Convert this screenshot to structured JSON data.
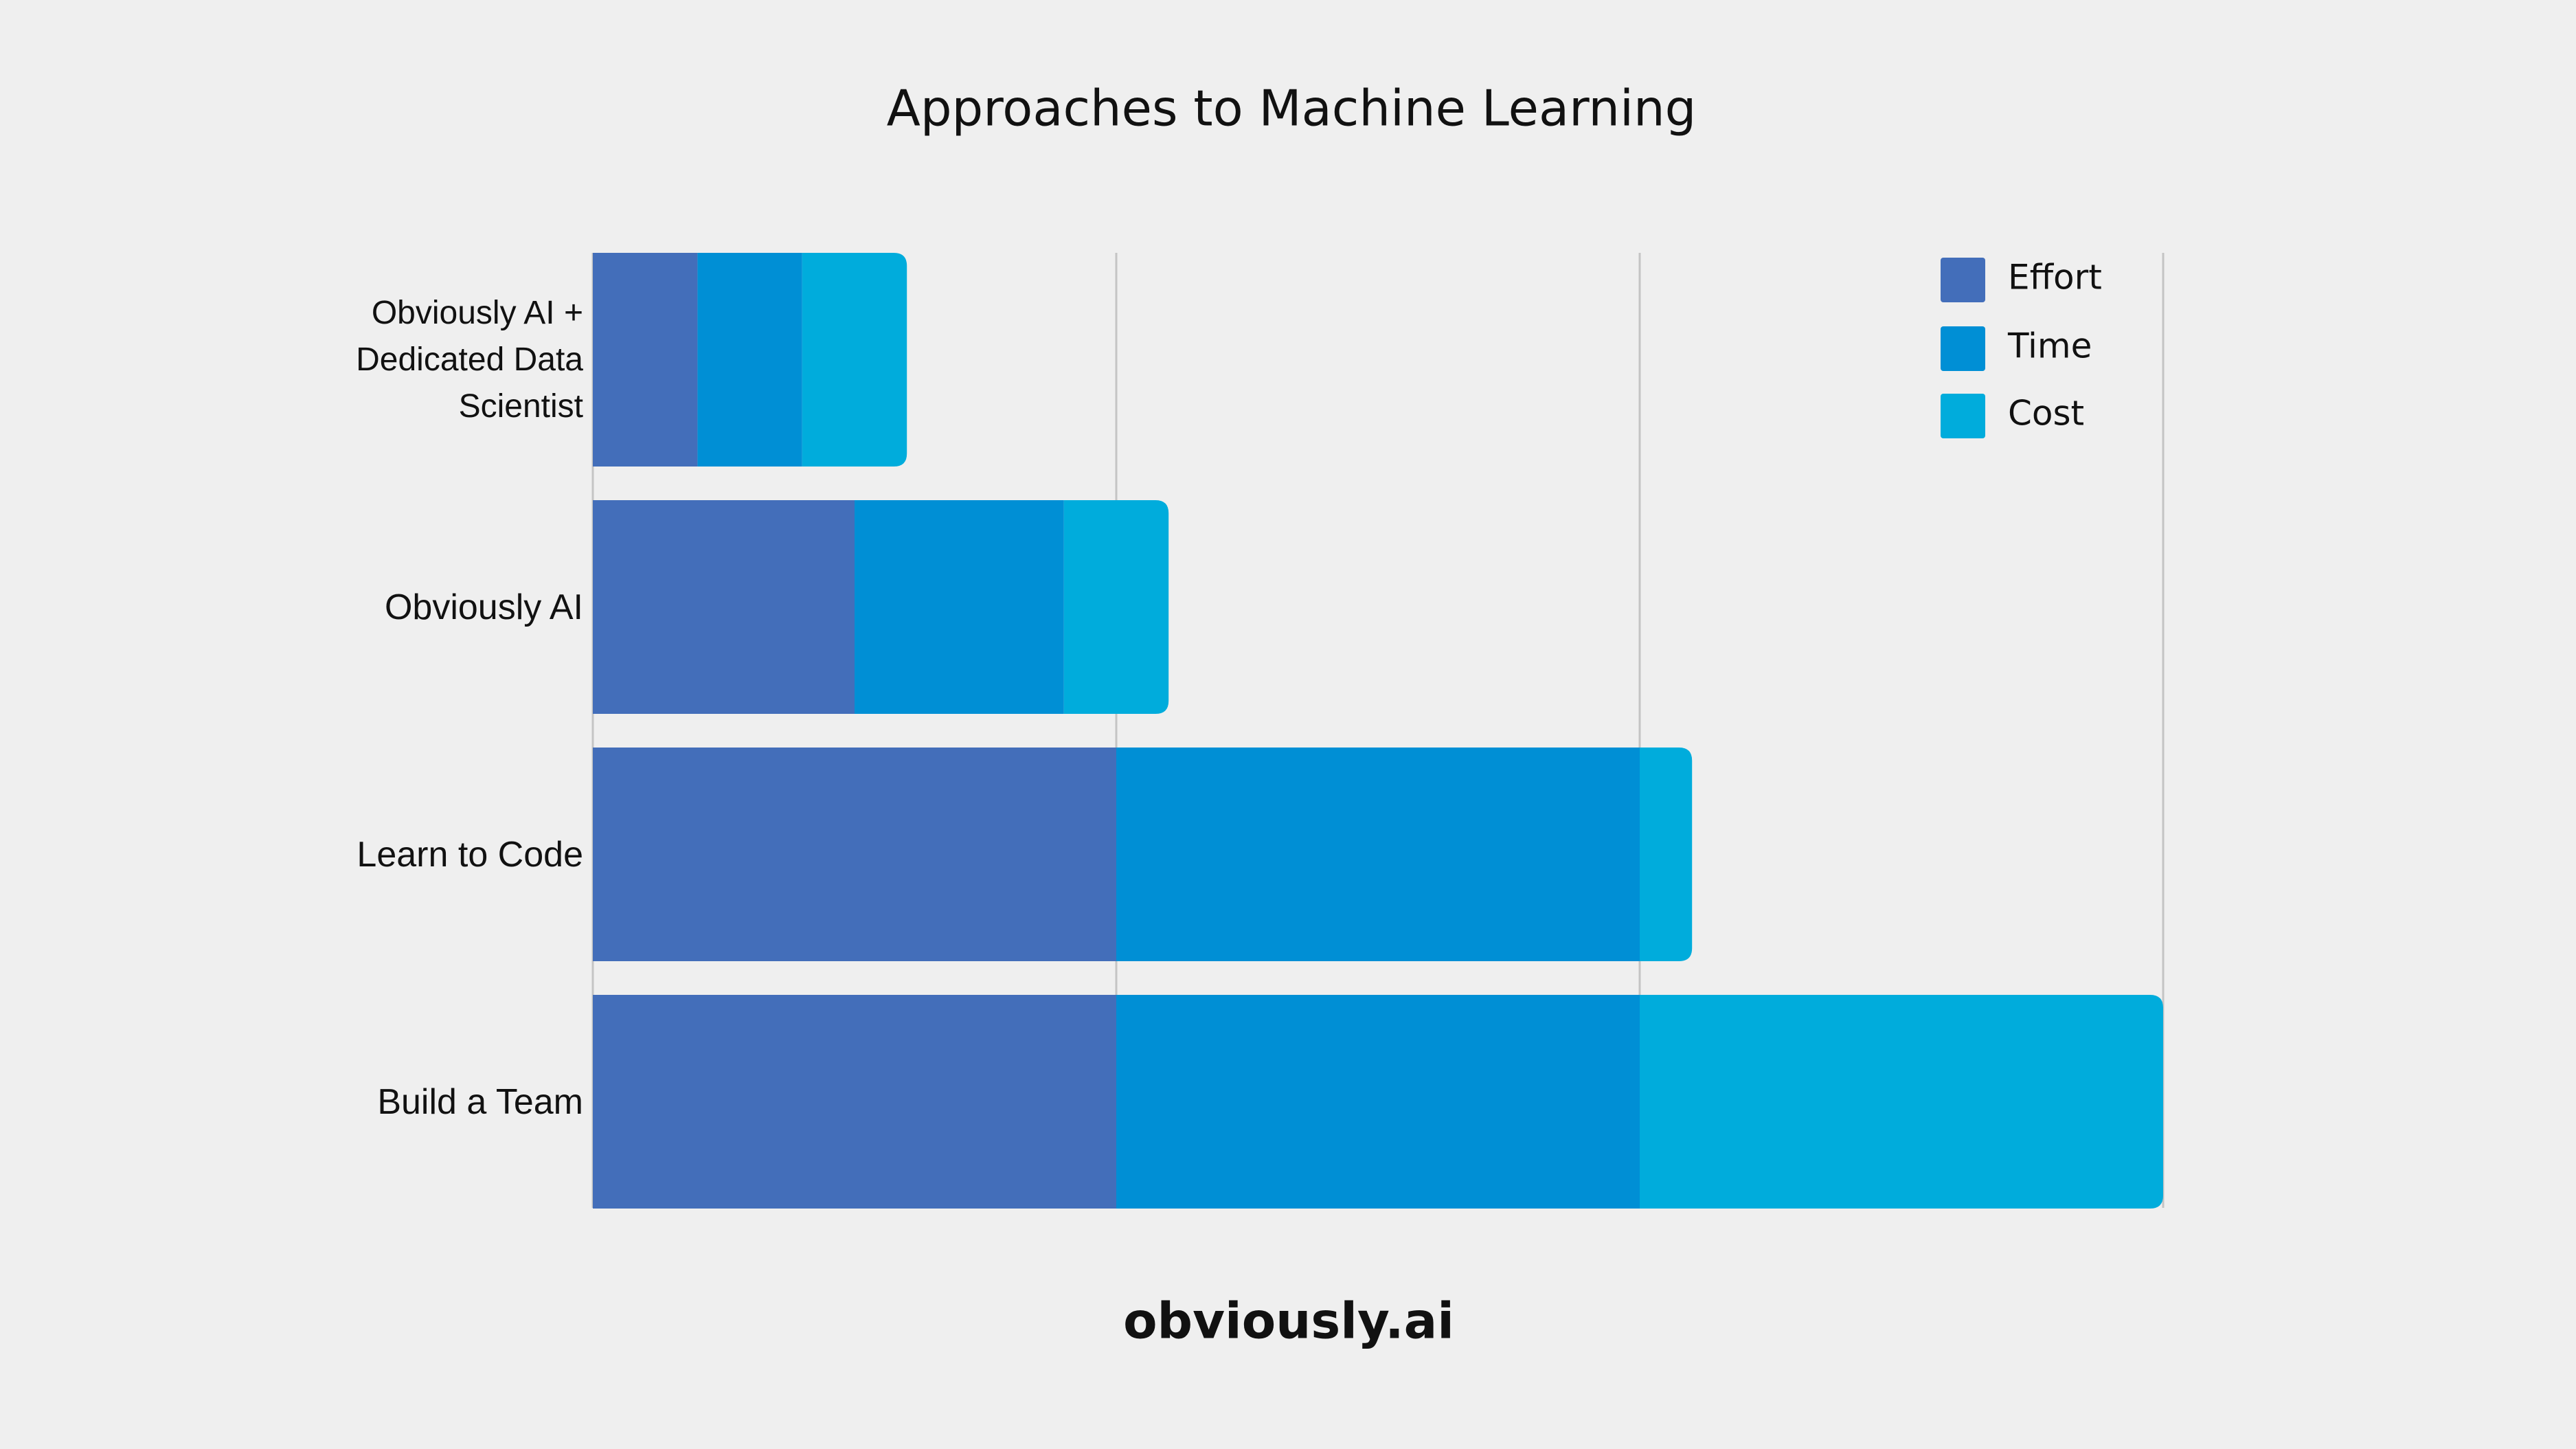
{
  "chart_data": {
    "type": "stacked_barh",
    "title": "Approaches to Machine Learning",
    "categories": [
      "Obviously AI +\nDedicated Data\nScientist",
      "Obviously AI",
      "Learn to Code",
      "Build a Team"
    ],
    "series": [
      {
        "name": "Effort",
        "color": "#436eba",
        "values": [
          0.2,
          0.5,
          1,
          1
        ]
      },
      {
        "name": "Time",
        "color": "#008fd5",
        "values": [
          0.2,
          0.4,
          1,
          1
        ]
      },
      {
        "name": "Cost",
        "color": "#00acdc",
        "values": [
          0.2,
          0.2,
          0.1,
          1
        ]
      }
    ],
    "xlim": [
      0,
      3
    ],
    "xticks": [
      0,
      1,
      2,
      3
    ],
    "grid": true,
    "legend": "top-right",
    "logo": "obviously.ai"
  }
}
